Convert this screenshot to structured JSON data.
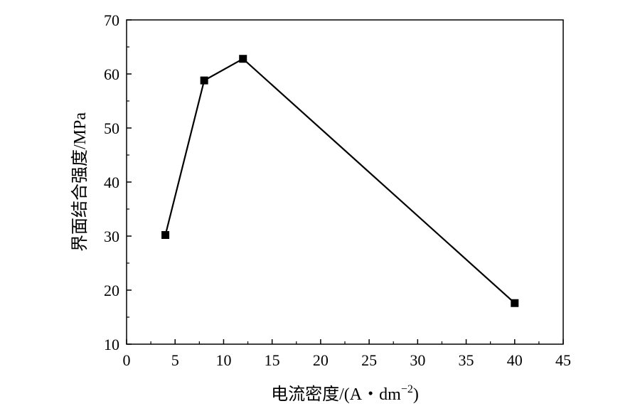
{
  "chart_data": {
    "type": "line",
    "title": "",
    "xlabel": "电流密度/(A・dm",
    "xlabel_sup": "−2",
    "xlabel_tail": ")",
    "ylabel": "界面结合强度/MPa",
    "xlim": [
      0,
      45
    ],
    "ylim": [
      10,
      70
    ],
    "xticks": [
      0,
      5,
      10,
      15,
      20,
      25,
      30,
      35,
      40,
      45
    ],
    "yticks": [
      10,
      20,
      30,
      40,
      50,
      60,
      70
    ],
    "grid": false,
    "marker": "square",
    "series": [
      {
        "x": [
          4,
          8,
          12,
          40
        ],
        "y": [
          30.2,
          58.8,
          62.8,
          17.6
        ]
      }
    ]
  }
}
